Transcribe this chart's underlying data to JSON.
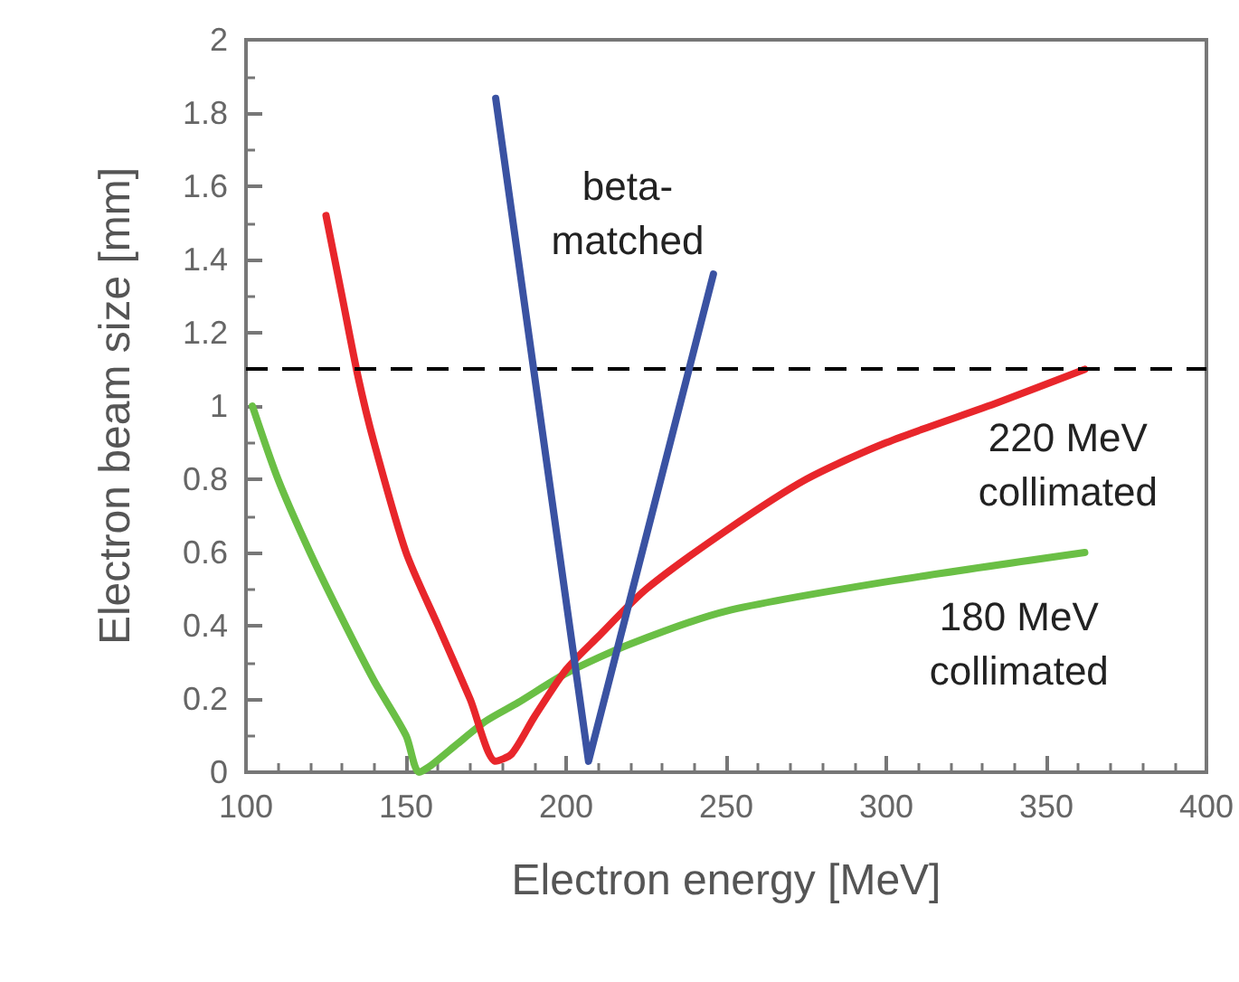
{
  "chart_data": {
    "type": "line",
    "xlabel": "Electron energy [MeV]",
    "ylabel": "Electron beam size [mm]",
    "xlim": [
      100,
      400
    ],
    "xticks": [
      100,
      150,
      200,
      250,
      300,
      350,
      400
    ],
    "ylim": [
      0,
      2
    ],
    "yticks": [
      0,
      0.2,
      0.4,
      0.6,
      0.8,
      1,
      1.2,
      1.4,
      1.6,
      1.8,
      2
    ],
    "grid": false,
    "marker": "none",
    "line_style": "solid",
    "series": [
      {
        "color": "#6abf45",
        "x": [
          102,
          110,
          120,
          130,
          140,
          150,
          154,
          158,
          165,
          175,
          185,
          200,
          220,
          250,
          300,
          362
        ],
        "values": [
          1.0,
          0.8,
          0.6,
          0.42,
          0.25,
          0.1,
          0.0,
          0.02,
          0.07,
          0.14,
          0.19,
          0.27,
          0.35,
          0.44,
          0.52,
          0.6
        ]
      },
      {
        "color": "#e8262b",
        "x": [
          125,
          130,
          135,
          140,
          150,
          160,
          170,
          178,
          183,
          190,
          200,
          210,
          225,
          250,
          275,
          300,
          335,
          362
        ],
        "values": [
          1.52,
          1.3,
          1.08,
          0.9,
          0.6,
          0.4,
          0.2,
          0.03,
          0.05,
          0.15,
          0.28,
          0.37,
          0.5,
          0.66,
          0.8,
          0.9,
          1.01,
          1.1
        ]
      },
      {
        "color": "#3a52a2",
        "x": [
          178,
          207,
          246
        ],
        "values": [
          1.84,
          0.03,
          1.36
        ]
      }
    ],
    "ref_lines": [
      {
        "axis": "y",
        "value": 1.1,
        "color": "#000000",
        "line_style": "dashed"
      }
    ],
    "annotations": [
      "beta-\nmatched",
      "220 MeV\ncollimated",
      "180 MeV\ncollimated"
    ]
  }
}
